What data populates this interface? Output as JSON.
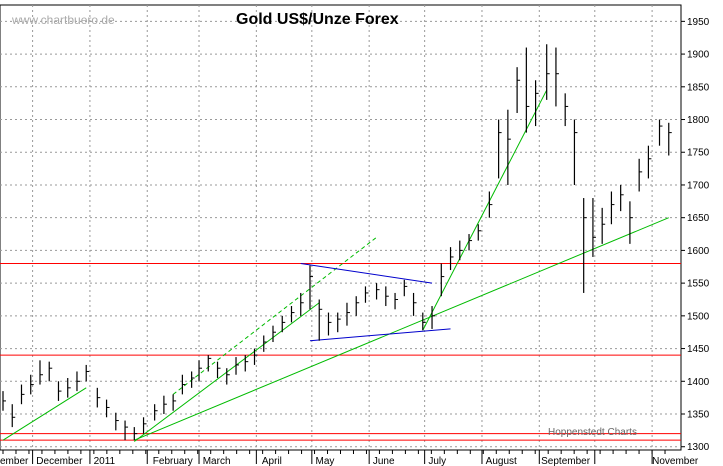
{
  "watermark": "www.chartbuero.de",
  "credit": "Hoppenstedt Charts",
  "chart_data": {
    "type": "bar",
    "subtype": "ohlc-range",
    "title": "Gold US$/Unze Forex",
    "xlabel": "",
    "ylabel": "",
    "ylim": [
      1295,
      1975
    ],
    "y_ticks": [
      1300,
      1350,
      1400,
      1450,
      1500,
      1550,
      1600,
      1650,
      1700,
      1750,
      1800,
      1850,
      1900,
      1950
    ],
    "x_ticks": [
      "ember",
      "December",
      "2011",
      "February",
      "March",
      "April",
      "May",
      "June",
      "July",
      "August",
      "September",
      "November"
    ],
    "grid": true,
    "colors": {
      "bars": "#000000",
      "grid": "#999999",
      "support": "#ff0000",
      "trend": "#00bb00",
      "triangle": "#0000cc"
    },
    "x": [
      "2010-11-15",
      "2010-11-20",
      "2010-11-25",
      "2010-11-30",
      "2010-12-05",
      "2010-12-10",
      "2010-12-15",
      "2010-12-20",
      "2010-12-25",
      "2010-12-30",
      "2011-01-05",
      "2011-01-10",
      "2011-01-15",
      "2011-01-20",
      "2011-01-25",
      "2011-01-30",
      "2011-02-05",
      "2011-02-10",
      "2011-02-15",
      "2011-02-20",
      "2011-02-25",
      "2011-03-01",
      "2011-03-06",
      "2011-03-11",
      "2011-03-16",
      "2011-03-21",
      "2011-03-26",
      "2011-03-31",
      "2011-04-05",
      "2011-04-10",
      "2011-04-15",
      "2011-04-20",
      "2011-04-25",
      "2011-04-30",
      "2011-05-05",
      "2011-05-10",
      "2011-05-15",
      "2011-05-20",
      "2011-05-25",
      "2011-05-30",
      "2011-06-05",
      "2011-06-10",
      "2011-06-15",
      "2011-06-20",
      "2011-06-25",
      "2011-06-30",
      "2011-07-05",
      "2011-07-10",
      "2011-07-15",
      "2011-07-20",
      "2011-07-25",
      "2011-07-30",
      "2011-08-05",
      "2011-08-10",
      "2011-08-15",
      "2011-08-20",
      "2011-08-25",
      "2011-08-30",
      "2011-09-05",
      "2011-09-10",
      "2011-09-15",
      "2011-09-20",
      "2011-09-25",
      "2011-09-30",
      "2011-10-05",
      "2011-10-10",
      "2011-10-15",
      "2011-10-20",
      "2011-10-25",
      "2011-10-30",
      "2011-11-05",
      "2011-11-10"
    ],
    "series": [
      {
        "values": [
          1370,
          1345,
          1380,
          1395,
          1410,
          1420,
          1385,
          1390,
          1400,
          1415,
          1375,
          1360,
          1340,
          1330,
          1320,
          1335,
          1355,
          1365,
          1370,
          1395,
          1405,
          1420,
          1435,
          1420,
          1410,
          1425,
          1430,
          1440,
          1460,
          1475,
          1490,
          1505,
          1520,
          1560,
          1510,
          1490,
          1495,
          1505,
          1520,
          1535,
          1540,
          1530,
          1525,
          1545,
          1520,
          1490,
          1500,
          1560,
          1590,
          1600,
          1615,
          1630,
          1670,
          1780,
          1770,
          1860,
          1820,
          1840,
          1870,
          1870,
          1820,
          1780,
          1650,
          1620,
          1640,
          1670,
          1685,
          1650,
          1720,
          1740,
          1790,
          1780
        ],
        "high": [
          1385,
          1365,
          1395,
          1410,
          1432,
          1430,
          1400,
          1405,
          1415,
          1425,
          1390,
          1372,
          1352,
          1340,
          1330,
          1345,
          1365,
          1378,
          1380,
          1410,
          1415,
          1432,
          1440,
          1430,
          1420,
          1437,
          1440,
          1450,
          1470,
          1485,
          1500,
          1515,
          1535,
          1577,
          1525,
          1505,
          1505,
          1520,
          1530,
          1545,
          1550,
          1545,
          1535,
          1555,
          1535,
          1505,
          1515,
          1580,
          1605,
          1615,
          1625,
          1640,
          1690,
          1800,
          1815,
          1880,
          1910,
          1860,
          1915,
          1910,
          1840,
          1800,
          1680,
          1680,
          1665,
          1690,
          1700,
          1675,
          1740,
          1760,
          1800,
          1795
        ],
        "low": [
          1355,
          1330,
          1365,
          1380,
          1395,
          1400,
          1370,
          1375,
          1385,
          1400,
          1360,
          1345,
          1325,
          1310,
          1310,
          1320,
          1340,
          1350,
          1355,
          1380,
          1390,
          1400,
          1415,
          1405,
          1395,
          1410,
          1415,
          1425,
          1445,
          1460,
          1475,
          1490,
          1500,
          1510,
          1462,
          1470,
          1475,
          1485,
          1500,
          1520,
          1525,
          1515,
          1510,
          1530,
          1500,
          1478,
          1480,
          1530,
          1570,
          1585,
          1600,
          1615,
          1650,
          1710,
          1700,
          1810,
          1780,
          1790,
          1830,
          1820,
          1790,
          1700,
          1535,
          1590,
          1610,
          1640,
          1660,
          1610,
          1690,
          1710,
          1760,
          1745
        ]
      }
    ],
    "horizontal_lines": [
      1580,
      1440,
      1320,
      1310
    ],
    "trend_lines": [
      {
        "from": [
          "2010-11-15",
          1310
        ],
        "to": [
          "2010-12-30",
          1390
        ],
        "style": "solid",
        "color": "#00bb00"
      },
      {
        "from": [
          "2011-01-25",
          1308
        ],
        "to": [
          "2011-05-05",
          1520
        ],
        "style": "solid",
        "color": "#00bb00"
      },
      {
        "from": [
          "2011-02-15",
          1380
        ],
        "to": [
          "2011-06-05",
          1620
        ],
        "style": "dashed",
        "color": "#00bb00"
      },
      {
        "from": [
          "2011-01-25",
          1310
        ],
        "to": [
          "2011-11-10",
          1650
        ],
        "style": "solid",
        "color": "#00bb00"
      },
      {
        "from": [
          "2011-06-30",
          1478
        ],
        "to": [
          "2011-09-05",
          1845
        ],
        "style": "solid",
        "color": "#00bb00"
      },
      {
        "from": [
          "2011-04-25",
          1580
        ],
        "to": [
          "2011-07-05",
          1550
        ],
        "style": "solid",
        "color": "#0000cc"
      },
      {
        "from": [
          "2011-04-30",
          1462
        ],
        "to": [
          "2011-07-15",
          1480
        ],
        "style": "solid",
        "color": "#0000cc"
      }
    ]
  }
}
